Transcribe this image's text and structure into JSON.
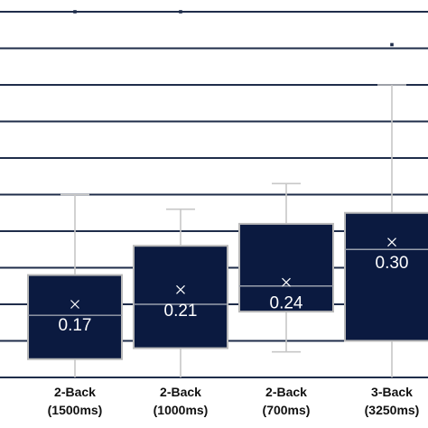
{
  "chart_data": {
    "type": "boxplot",
    "title": "",
    "xlabel": "",
    "ylabel": "",
    "grid": true,
    "ylim": [
      -0.05,
      0.95
    ],
    "gridlines": [
      -0.05,
      0.05,
      0.15,
      0.25,
      0.35,
      0.45,
      0.55,
      0.65,
      0.75,
      0.85,
      0.95
    ],
    "categories": [
      {
        "line1": "2-Back",
        "line2": "(1500ms)"
      },
      {
        "line1": "2-Back",
        "line2": "(1000ms)"
      },
      {
        "line1": "2-Back",
        "line2": "(700ms)"
      },
      {
        "line1": "3-Back",
        "line2": "(3250ms)"
      }
    ],
    "boxes": [
      {
        "label": "0.17",
        "whisker_low": -0.05,
        "q1": 0.0,
        "median": 0.12,
        "q3": 0.23,
        "whisker_high": 0.45,
        "mean": 0.15,
        "outliers": [
          0.95
        ]
      },
      {
        "label": "0.21",
        "whisker_low": -0.05,
        "q1": 0.03,
        "median": 0.15,
        "q3": 0.31,
        "whisker_high": 0.41,
        "mean": 0.19,
        "outliers": [
          0.95
        ]
      },
      {
        "label": "0.24",
        "whisker_low": 0.02,
        "q1": 0.13,
        "median": 0.2,
        "q3": 0.37,
        "whisker_high": 0.48,
        "mean": 0.21,
        "outliers": []
      },
      {
        "label": "0.30",
        "whisker_low": -0.05,
        "q1": 0.05,
        "median": 0.3,
        "q3": 0.4,
        "whisker_high": 0.75,
        "mean": 0.32,
        "outliers": [
          0.86
        ]
      }
    ]
  }
}
